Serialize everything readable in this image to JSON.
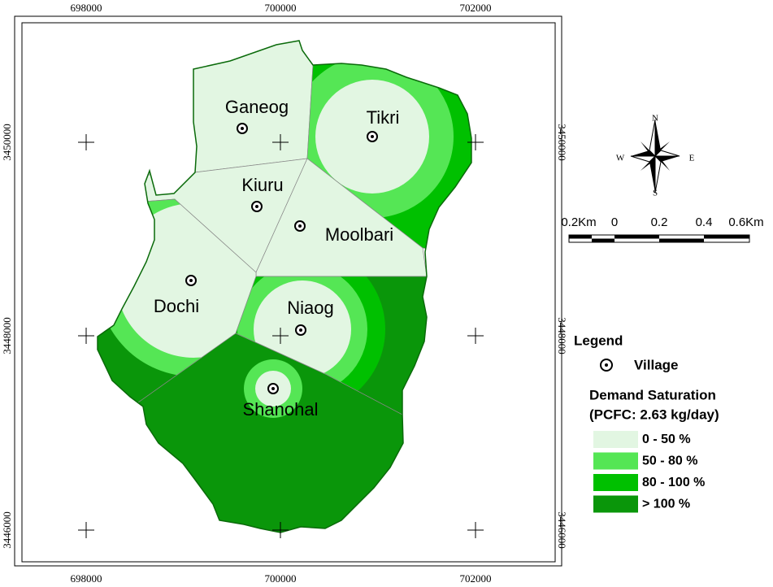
{
  "frame": {
    "x_labels": [
      "698000",
      "700000",
      "702000"
    ],
    "y_labels": [
      "3450000",
      "3448000",
      "3446000"
    ]
  },
  "villages": [
    {
      "name": "Ganeog"
    },
    {
      "name": "Tikri"
    },
    {
      "name": "Kiuru"
    },
    {
      "name": "Moolbari"
    },
    {
      "name": "Dochi"
    },
    {
      "name": "Niaog"
    },
    {
      "name": "Shanohal"
    }
  ],
  "compass": {
    "n": "N",
    "e": "E",
    "s": "S",
    "w": "W"
  },
  "scale_bar": {
    "labels": [
      "0.2Km",
      "0",
      "0.2",
      "0.4",
      "0.6Km"
    ]
  },
  "legend": {
    "title": "Legend",
    "village": "Village",
    "saturation_title": "Demand Saturation",
    "saturation_subtitle": "(PCFC: 2.63 kg/day)",
    "classes": [
      {
        "label": "0 - 50 %",
        "color": "#e2f6e2"
      },
      {
        "label": "50 - 80 %",
        "color": "#55e655"
      },
      {
        "label": "80 - 100 %",
        "color": "#00c000"
      },
      {
        "label": "> 100 %",
        "color": "#0a960a"
      }
    ]
  }
}
